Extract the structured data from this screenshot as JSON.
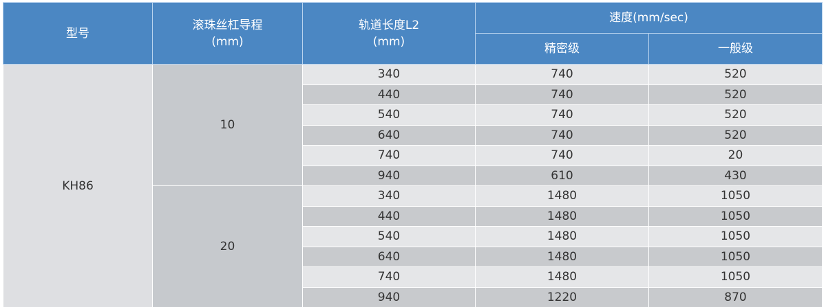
{
  "header": {
    "model": "型号",
    "lead": "滚珠丝杠导程",
    "lead_unit": "(mm)",
    "length": "轨道长度L2",
    "length_unit": "(mm)",
    "speed": "速度(mm/sec)",
    "precision": "精密级",
    "general": "一般级"
  },
  "model": "KH86",
  "groups": [
    {
      "lead": "10",
      "rows": [
        {
          "length": "340",
          "precision": "740",
          "general": "520"
        },
        {
          "length": "440",
          "precision": "740",
          "general": "520"
        },
        {
          "length": "540",
          "precision": "740",
          "general": "520"
        },
        {
          "length": "640",
          "precision": "740",
          "general": "520"
        },
        {
          "length": "740",
          "precision": "740",
          "general": "20"
        },
        {
          "length": "940",
          "precision": "610",
          "general": "430"
        }
      ]
    },
    {
      "lead": "20",
      "rows": [
        {
          "length": "340",
          "precision": "1480",
          "general": "1050"
        },
        {
          "length": "440",
          "precision": "1480",
          "general": "1050"
        },
        {
          "length": "540",
          "precision": "1480",
          "general": "1050"
        },
        {
          "length": "640",
          "precision": "1480",
          "general": "1050"
        },
        {
          "length": "740",
          "precision": "1480",
          "general": "1050"
        },
        {
          "length": "940",
          "precision": "1220",
          "general": "870"
        }
      ]
    }
  ]
}
